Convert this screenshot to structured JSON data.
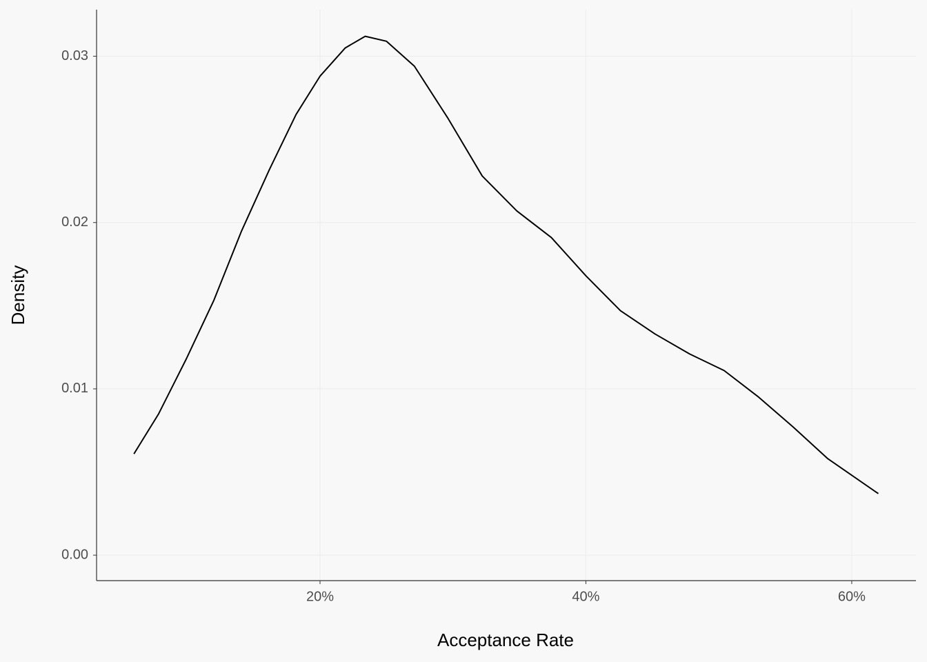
{
  "chart_data": {
    "type": "line",
    "x_label": "Acceptance Rate",
    "y_label": "Density",
    "x": [
      6.0,
      7.86,
      9.94,
      12.0,
      14.1,
      16.2,
      18.2,
      20.0,
      21.9,
      23.4,
      25.0,
      27.1,
      29.6,
      32.2,
      34.8,
      37.4,
      40.0,
      42.6,
      45.2,
      47.8,
      50.4,
      53.0,
      55.6,
      58.2,
      62.0
    ],
    "series": [
      {
        "color": "#000000",
        "values": [
          0.00609,
          0.0085,
          0.0118,
          0.0153,
          0.0195,
          0.0232,
          0.0265,
          0.0288,
          0.0305,
          0.0312,
          0.0309,
          0.0294,
          0.0263,
          0.0228,
          0.0207,
          0.0191,
          0.0168,
          0.0147,
          0.0133,
          0.0121,
          0.0111,
          0.0095,
          0.0077,
          0.0058,
          0.0037
        ]
      }
    ],
    "xlim": [
      3.19,
      64.83
    ],
    "xticks": [
      {
        "value": 20,
        "label": "20%"
      },
      {
        "value": 40,
        "label": "40%"
      },
      {
        "value": 60,
        "label": "60%"
      }
    ],
    "ylim": [
      -0.00153,
      0.0328
    ],
    "yticks": [
      {
        "value": 0,
        "label": "0.00"
      },
      0.01,
      0.02,
      0.03
    ],
    "grid": true
  }
}
